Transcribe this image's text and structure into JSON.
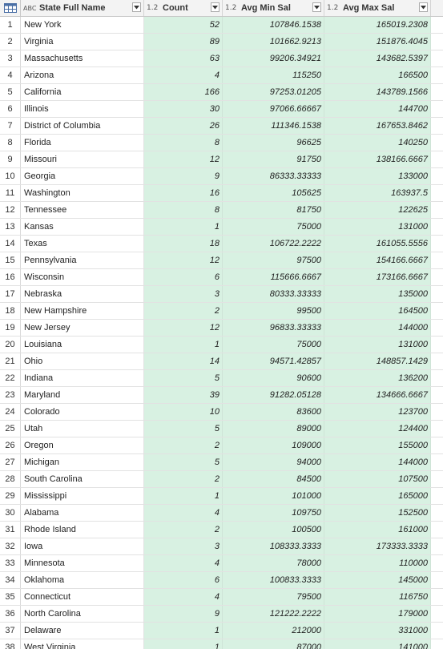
{
  "columns": {
    "state": {
      "type": "ABC",
      "label": "State Full Name"
    },
    "count": {
      "type": "1.2",
      "label": "Count"
    },
    "min_sal": {
      "type": "1.2",
      "label": "Avg Min Sal"
    },
    "max_sal": {
      "type": "1.2",
      "label": "Avg Max Sal"
    }
  },
  "rows": [
    {
      "n": "1",
      "state": "New York",
      "count": "52",
      "min": "107846.1538",
      "max": "165019.2308"
    },
    {
      "n": "2",
      "state": "Virginia",
      "count": "89",
      "min": "101662.9213",
      "max": "151876.4045"
    },
    {
      "n": "3",
      "state": "Massachusetts",
      "count": "63",
      "min": "99206.34921",
      "max": "143682.5397"
    },
    {
      "n": "4",
      "state": "Arizona",
      "count": "4",
      "min": "115250",
      "max": "166500"
    },
    {
      "n": "5",
      "state": "California",
      "count": "166",
      "min": "97253.01205",
      "max": "143789.1566"
    },
    {
      "n": "6",
      "state": "Illinois",
      "count": "30",
      "min": "97066.66667",
      "max": "144700"
    },
    {
      "n": "7",
      "state": "District of Columbia",
      "count": "26",
      "min": "111346.1538",
      "max": "167653.8462"
    },
    {
      "n": "8",
      "state": "Florida",
      "count": "8",
      "min": "96625",
      "max": "140250"
    },
    {
      "n": "9",
      "state": "Missouri",
      "count": "12",
      "min": "91750",
      "max": "138166.6667"
    },
    {
      "n": "10",
      "state": "Georgia",
      "count": "9",
      "min": "86333.33333",
      "max": "133000"
    },
    {
      "n": "11",
      "state": "Washington",
      "count": "16",
      "min": "105625",
      "max": "163937.5"
    },
    {
      "n": "12",
      "state": "Tennessee",
      "count": "8",
      "min": "81750",
      "max": "122625"
    },
    {
      "n": "13",
      "state": "Kansas",
      "count": "1",
      "min": "75000",
      "max": "131000"
    },
    {
      "n": "14",
      "state": "Texas",
      "count": "18",
      "min": "106722.2222",
      "max": "161055.5556"
    },
    {
      "n": "15",
      "state": "Pennsylvania",
      "count": "12",
      "min": "97500",
      "max": "154166.6667"
    },
    {
      "n": "16",
      "state": "Wisconsin",
      "count": "6",
      "min": "115666.6667",
      "max": "173166.6667"
    },
    {
      "n": "17",
      "state": "Nebraska",
      "count": "3",
      "min": "80333.33333",
      "max": "135000"
    },
    {
      "n": "18",
      "state": "New Hampshire",
      "count": "2",
      "min": "99500",
      "max": "164500"
    },
    {
      "n": "19",
      "state": "New Jersey",
      "count": "12",
      "min": "96833.33333",
      "max": "144000"
    },
    {
      "n": "20",
      "state": "Louisiana",
      "count": "1",
      "min": "75000",
      "max": "131000"
    },
    {
      "n": "21",
      "state": "Ohio",
      "count": "14",
      "min": "94571.42857",
      "max": "148857.1429"
    },
    {
      "n": "22",
      "state": "Indiana",
      "count": "5",
      "min": "90600",
      "max": "136200"
    },
    {
      "n": "23",
      "state": "Maryland",
      "count": "39",
      "min": "91282.05128",
      "max": "134666.6667"
    },
    {
      "n": "24",
      "state": "Colorado",
      "count": "10",
      "min": "83600",
      "max": "123700"
    },
    {
      "n": "25",
      "state": "Utah",
      "count": "5",
      "min": "89000",
      "max": "124400"
    },
    {
      "n": "26",
      "state": "Oregon",
      "count": "2",
      "min": "109000",
      "max": "155000"
    },
    {
      "n": "27",
      "state": "Michigan",
      "count": "5",
      "min": "94000",
      "max": "144000"
    },
    {
      "n": "28",
      "state": "South Carolina",
      "count": "2",
      "min": "84500",
      "max": "107500"
    },
    {
      "n": "29",
      "state": "Mississippi",
      "count": "1",
      "min": "101000",
      "max": "165000"
    },
    {
      "n": "30",
      "state": "Alabama",
      "count": "4",
      "min": "109750",
      "max": "152500"
    },
    {
      "n": "31",
      "state": "Rhode Island",
      "count": "2",
      "min": "100500",
      "max": "161000"
    },
    {
      "n": "32",
      "state": "Iowa",
      "count": "3",
      "min": "108333.3333",
      "max": "173333.3333"
    },
    {
      "n": "33",
      "state": "Minnesota",
      "count": "4",
      "min": "78000",
      "max": "110000"
    },
    {
      "n": "34",
      "state": "Oklahoma",
      "count": "6",
      "min": "100833.3333",
      "max": "145000"
    },
    {
      "n": "35",
      "state": "Connecticut",
      "count": "4",
      "min": "79500",
      "max": "116750"
    },
    {
      "n": "36",
      "state": "North Carolina",
      "count": "9",
      "min": "121222.2222",
      "max": "179000"
    },
    {
      "n": "37",
      "state": "Delaware",
      "count": "1",
      "min": "212000",
      "max": "331000"
    },
    {
      "n": "38",
      "state": "West Virginia",
      "count": "1",
      "min": "87000",
      "max": "141000"
    }
  ]
}
